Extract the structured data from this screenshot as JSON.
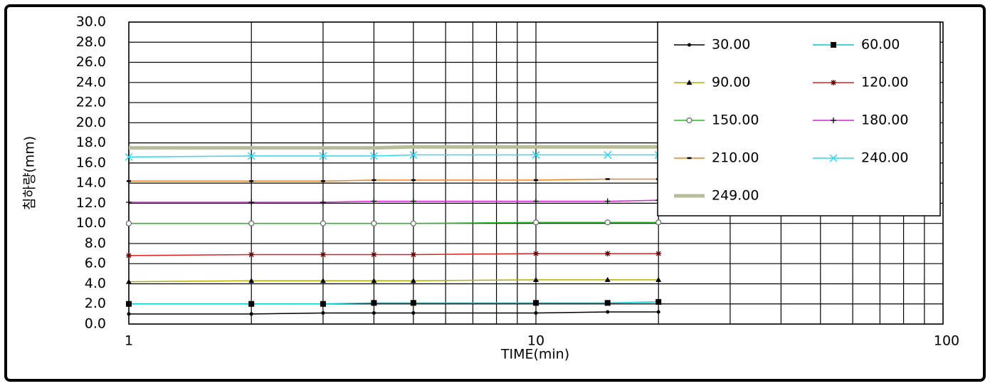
{
  "chart_data": {
    "type": "line",
    "xlabel": "TIME(min)",
    "ylabel": "침하량(mm)",
    "x": [
      1,
      2,
      3,
      4,
      5,
      10,
      15,
      20
    ],
    "xscale": "log",
    "xlim": [
      1,
      100
    ],
    "xticks": [
      1,
      10,
      100
    ],
    "ylim": [
      0,
      30
    ],
    "yticks": [
      {
        "value": 0,
        "label": "0.0"
      },
      {
        "value": 2,
        "label": "2.0"
      },
      {
        "value": 4,
        "label": "4.0"
      },
      {
        "value": 6,
        "label": "6.0"
      },
      {
        "value": 8,
        "label": "8.0"
      },
      {
        "value": 10,
        "label": "10.0"
      },
      {
        "value": 12,
        "label": "12.0"
      },
      {
        "value": 14,
        "label": "14.0"
      },
      {
        "value": 16,
        "label": "16.0"
      },
      {
        "value": 18,
        "label": "18.0"
      },
      {
        "value": 20,
        "label": "20.0"
      },
      {
        "value": 22,
        "label": "22.0"
      },
      {
        "value": 24,
        "label": "24.0"
      },
      {
        "value": 26,
        "label": "26.0"
      },
      {
        "value": 28,
        "label": "28.0"
      },
      {
        "value": 30,
        "label": "30.0"
      }
    ],
    "grid": true,
    "legend": "upper right",
    "series": [
      {
        "name": "30.00",
        "color": "#000000",
        "marker": "dot",
        "values": [
          1.0,
          1.0,
          1.1,
          1.1,
          1.1,
          1.1,
          1.2,
          1.2
        ]
      },
      {
        "name": "60.00",
        "color": "#00c8d0",
        "marker": "square",
        "values": [
          2.0,
          2.0,
          2.0,
          2.1,
          2.1,
          2.1,
          2.1,
          2.2
        ]
      },
      {
        "name": "90.00",
        "color": "#b0b000",
        "marker": "triangle",
        "values": [
          4.2,
          4.3,
          4.3,
          4.3,
          4.3,
          4.4,
          4.4,
          4.4
        ]
      },
      {
        "name": "120.00",
        "color": "#e02020",
        "marker": "star",
        "values": [
          6.8,
          6.9,
          6.9,
          6.9,
          6.9,
          7.0,
          7.0,
          7.0
        ]
      },
      {
        "name": "150.00",
        "color": "#20c020",
        "marker": "circle",
        "values": [
          10.0,
          10.0,
          10.0,
          10.0,
          10.0,
          10.1,
          10.1,
          10.1
        ]
      },
      {
        "name": "180.00",
        "color": "#e020e0",
        "marker": "plus",
        "values": [
          12.1,
          12.1,
          12.1,
          12.2,
          12.2,
          12.2,
          12.2,
          12.3
        ]
      },
      {
        "name": "210.00",
        "color": "#f08020",
        "marker": "dash",
        "values": [
          14.2,
          14.2,
          14.2,
          14.3,
          14.3,
          14.3,
          14.4,
          14.4
        ]
      },
      {
        "name": "240.00",
        "color": "#30d8f0",
        "marker": "cross",
        "values": [
          16.6,
          16.7,
          16.7,
          16.7,
          16.8,
          16.8,
          16.8,
          16.8
        ]
      },
      {
        "name": "249.00",
        "color": "#b8bc98",
        "marker": "none",
        "values": [
          17.5,
          17.5,
          17.5,
          17.5,
          17.6,
          17.6,
          17.6,
          17.6
        ]
      }
    ]
  }
}
